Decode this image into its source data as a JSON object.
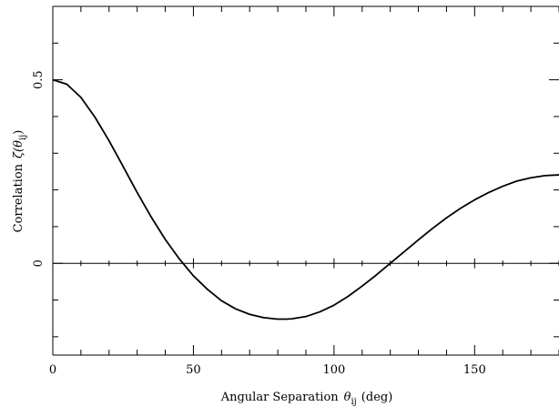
{
  "chart_data": {
    "type": "line",
    "title": "",
    "xlabel": "Angular Separation",
    "xlabel_symbol": "θ",
    "xlabel_subscript": "ij",
    "xlabel_unit": "(deg)",
    "ylabel": "Correlation",
    "ylabel_symbol": "ζ(θ",
    "ylabel_subscript": "ij",
    "ylabel_close": ")",
    "xlim": [
      0,
      180
    ],
    "ylim": [
      -0.25,
      0.7
    ],
    "x_ticks": [
      0,
      50,
      100,
      150
    ],
    "x_tick_labels": [
      "0",
      "50",
      "100",
      "150"
    ],
    "y_ticks": [
      0,
      0.5
    ],
    "y_tick_labels": [
      "0",
      "0.5"
    ],
    "grid": false,
    "zero_line": true,
    "series": [
      {
        "color": "#000000",
        "x": [
          0,
          5,
          10,
          15,
          20,
          25,
          30,
          35,
          40,
          45,
          50,
          55,
          60,
          65,
          70,
          75,
          80,
          83,
          85,
          90,
          95,
          100,
          105,
          110,
          115,
          120,
          125,
          130,
          135,
          140,
          145,
          150,
          155,
          160,
          165,
          170,
          175,
          180
        ],
        "y": [
          0.5,
          0.488,
          0.452,
          0.398,
          0.334,
          0.264,
          0.193,
          0.126,
          0.065,
          0.012,
          -0.034,
          -0.071,
          -0.102,
          -0.124,
          -0.139,
          -0.148,
          -0.152,
          -0.152,
          -0.151,
          -0.145,
          -0.132,
          -0.114,
          -0.09,
          -0.062,
          -0.032,
          0.0,
          0.032,
          0.064,
          0.095,
          0.124,
          0.15,
          0.173,
          0.193,
          0.21,
          0.224,
          0.233,
          0.239,
          0.241
        ]
      }
    ]
  }
}
